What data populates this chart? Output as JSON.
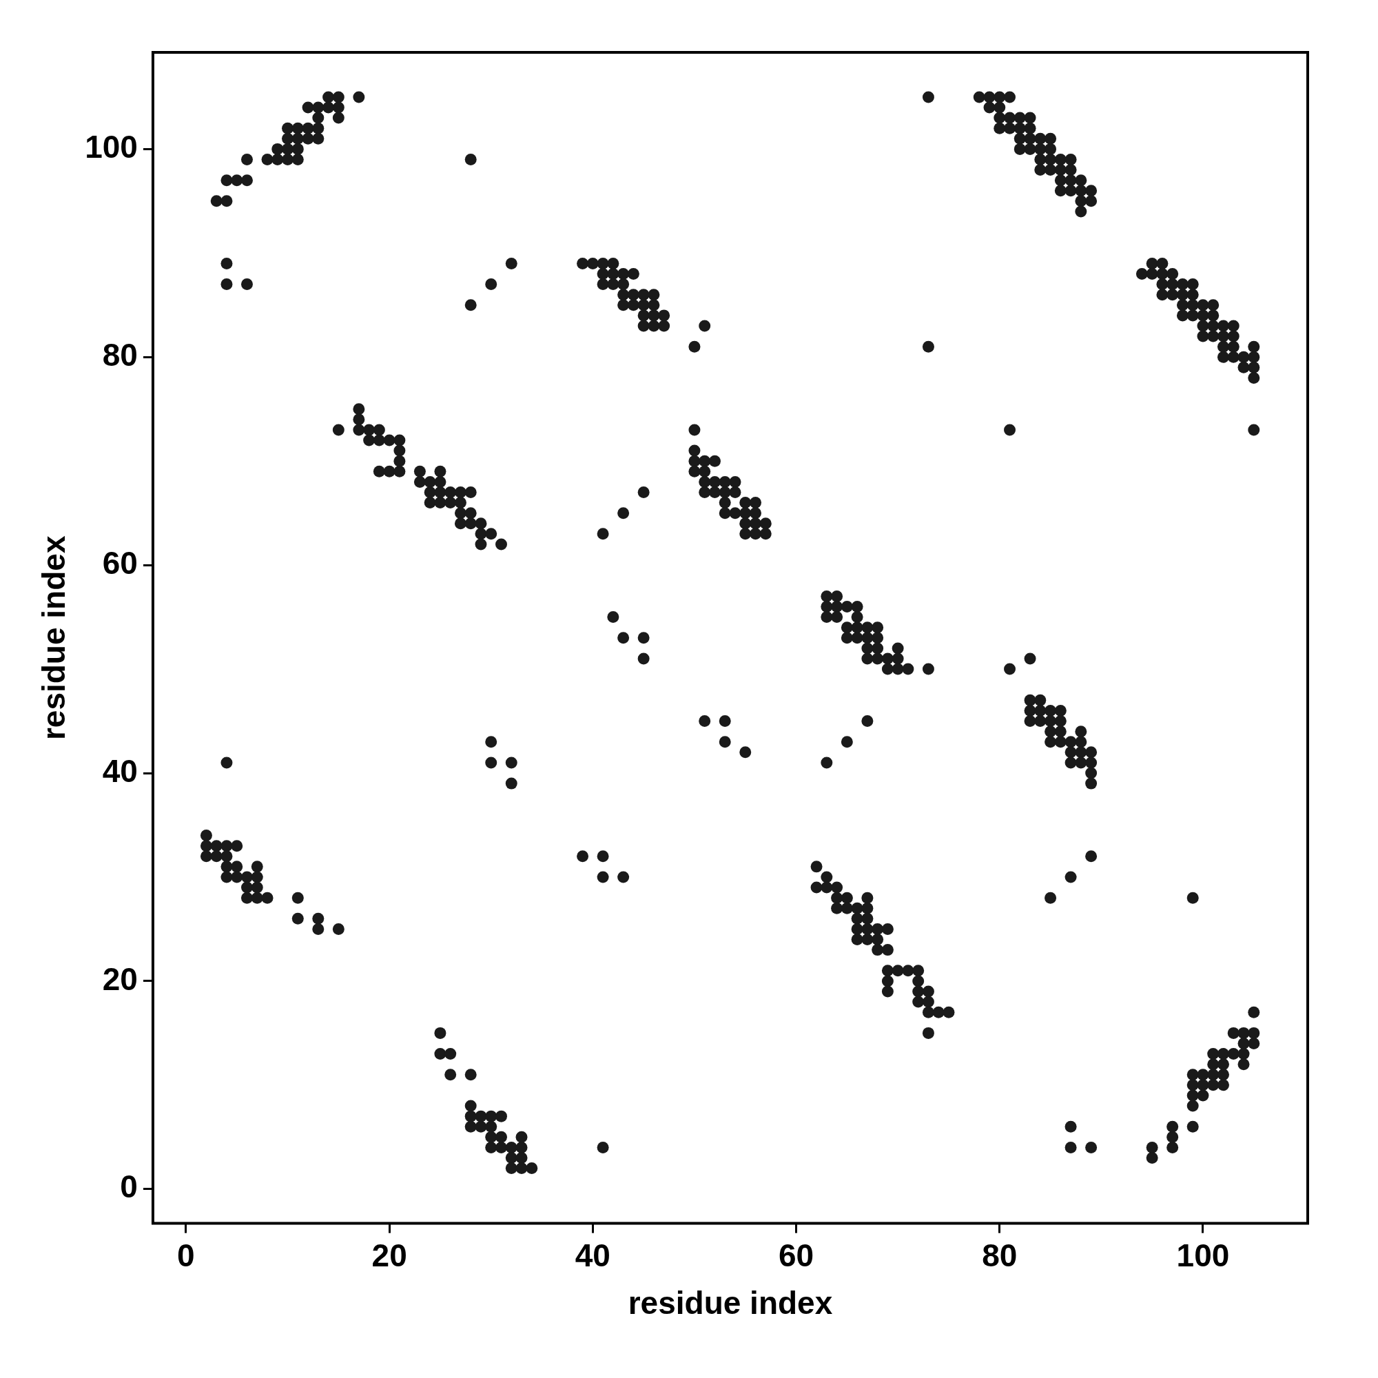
{
  "chart_data": {
    "type": "scatter",
    "xlabel": "residue index",
    "ylabel": "residue index",
    "xlim": [
      -3.25,
      110.3
    ],
    "ylim": [
      -3.3,
      109.3
    ],
    "xticks": [
      0,
      20,
      40,
      60,
      80,
      100
    ],
    "yticks": [
      0,
      20,
      40,
      60,
      80,
      100
    ],
    "marker": "circle",
    "series": [
      {
        "color": "#1a1a1a",
        "x": [
          14,
          15,
          17,
          73,
          78,
          79,
          80,
          81,
          12,
          13,
          14,
          15,
          79,
          80,
          13,
          15,
          80,
          81,
          82,
          83,
          10,
          11,
          12,
          13,
          80,
          81,
          82,
          83,
          10,
          11,
          12,
          13,
          82,
          83,
          84,
          85,
          9,
          10,
          11,
          82,
          83,
          84,
          85,
          6,
          8,
          9,
          10,
          11,
          28,
          84,
          85,
          86,
          87,
          84,
          85,
          86,
          87,
          4,
          5,
          6,
          86,
          87,
          88,
          86,
          87,
          88,
          89,
          3,
          4,
          88,
          89,
          88,
          4,
          32,
          39,
          40,
          41,
          42,
          95,
          96,
          41,
          42,
          43,
          44,
          94,
          95,
          96,
          97,
          4,
          6,
          30,
          41,
          42,
          43,
          96,
          97,
          98,
          99,
          43,
          44,
          45,
          46,
          96,
          97,
          98,
          99,
          28,
          43,
          44,
          45,
          46,
          98,
          99,
          100,
          101,
          45,
          46,
          47,
          98,
          99,
          100,
          101,
          45,
          46,
          47,
          51,
          100,
          101,
          102,
          103,
          100,
          101,
          102,
          103,
          50,
          73,
          102,
          103,
          105,
          102,
          103,
          104,
          105,
          104,
          105,
          105,
          17,
          17,
          15,
          17,
          18,
          19,
          50,
          81,
          105,
          18,
          19,
          20,
          21,
          21,
          50,
          21,
          50,
          51,
          52,
          19,
          20,
          21,
          23,
          25,
          50,
          51,
          23,
          24,
          25,
          51,
          52,
          53,
          54,
          24,
          25,
          26,
          27,
          28,
          45,
          51,
          52,
          53,
          54,
          24,
          25,
          26,
          27,
          53,
          55,
          56,
          27,
          28,
          43,
          53,
          54,
          55,
          56,
          27,
          28,
          29,
          55,
          56,
          57,
          29,
          30,
          41,
          55,
          56,
          57,
          29,
          31,
          63,
          64,
          63,
          64,
          65,
          66,
          42,
          63,
          64,
          66,
          65,
          66,
          67,
          68,
          43,
          45,
          65,
          66,
          67,
          68,
          67,
          68,
          70,
          45,
          67,
          68,
          69,
          70,
          83,
          69,
          70,
          71,
          73,
          81,
          83,
          84,
          83,
          84,
          85,
          86,
          51,
          53,
          67,
          83,
          84,
          85,
          86,
          85,
          86,
          88,
          30,
          53,
          65,
          85,
          86,
          87,
          88,
          55,
          87,
          88,
          89,
          4,
          30,
          32,
          63,
          87,
          88,
          89,
          89,
          32,
          89,
          2,
          2,
          3,
          4,
          5,
          2,
          3,
          4,
          39,
          41,
          89,
          4,
          5,
          7,
          62,
          4,
          5,
          6,
          7,
          41,
          43,
          63,
          87,
          6,
          7,
          62,
          63,
          64,
          6,
          7,
          8,
          11,
          64,
          65,
          67,
          85,
          99,
          64,
          65,
          66,
          67,
          11,
          13,
          66,
          67,
          13,
          15,
          66,
          67,
          68,
          69,
          66,
          67,
          68,
          68,
          69,
          69,
          70,
          71,
          72,
          69,
          72,
          69,
          72,
          73,
          72,
          73,
          73,
          74,
          75,
          105,
          25,
          73,
          103,
          104,
          105,
          104,
          105,
          25,
          26,
          101,
          102,
          103,
          104,
          101,
          102,
          104,
          26,
          28,
          99,
          100,
          101,
          102,
          99,
          100,
          101,
          102,
          99,
          100,
          28,
          99,
          28,
          29,
          30,
          31,
          28,
          29,
          30,
          87,
          97,
          99,
          30,
          31,
          33,
          97,
          30,
          31,
          32,
          33,
          41,
          87,
          89,
          95,
          97,
          32,
          33,
          95,
          32,
          33,
          34
        ],
        "values": [
          105,
          105,
          105,
          105,
          105,
          105,
          105,
          105,
          104,
          104,
          104,
          104,
          104,
          104,
          103,
          103,
          103,
          103,
          103,
          103,
          102,
          102,
          102,
          102,
          102,
          102,
          102,
          102,
          101,
          101,
          101,
          101,
          101,
          101,
          101,
          101,
          100,
          100,
          100,
          100,
          100,
          100,
          100,
          99,
          99,
          99,
          99,
          99,
          99,
          99,
          99,
          99,
          99,
          98,
          98,
          98,
          98,
          97,
          97,
          97,
          97,
          97,
          97,
          96,
          96,
          96,
          96,
          95,
          95,
          95,
          95,
          94,
          89,
          89,
          89,
          89,
          89,
          89,
          89,
          89,
          88,
          88,
          88,
          88,
          88,
          88,
          88,
          88,
          87,
          87,
          87,
          87,
          87,
          87,
          87,
          87,
          87,
          87,
          86,
          86,
          86,
          86,
          86,
          86,
          86,
          86,
          85,
          85,
          85,
          85,
          85,
          85,
          85,
          85,
          85,
          84,
          84,
          84,
          84,
          84,
          84,
          84,
          83,
          83,
          83,
          83,
          83,
          83,
          83,
          83,
          82,
          82,
          82,
          82,
          81,
          81,
          81,
          81,
          81,
          80,
          80,
          80,
          80,
          79,
          79,
          78,
          75,
          74,
          73,
          73,
          73,
          73,
          73,
          73,
          73,
          72,
          72,
          72,
          72,
          71,
          71,
          70,
          70,
          70,
          70,
          69,
          69,
          69,
          69,
          69,
          69,
          69,
          68,
          68,
          68,
          68,
          68,
          68,
          68,
          67,
          67,
          67,
          67,
          67,
          67,
          67,
          67,
          67,
          67,
          66,
          66,
          66,
          66,
          66,
          66,
          66,
          65,
          65,
          65,
          65,
          65,
          65,
          65,
          64,
          64,
          64,
          64,
          64,
          64,
          63,
          63,
          63,
          63,
          63,
          63,
          62,
          62,
          57,
          57,
          56,
          56,
          56,
          56,
          55,
          55,
          55,
          55,
          54,
          54,
          54,
          54,
          53,
          53,
          53,
          53,
          53,
          53,
          52,
          52,
          52,
          51,
          51,
          51,
          51,
          51,
          51,
          50,
          50,
          50,
          50,
          50,
          47,
          47,
          46,
          46,
          46,
          46,
          45,
          45,
          45,
          45,
          45,
          45,
          45,
          44,
          44,
          44,
          43,
          43,
          43,
          43,
          43,
          43,
          43,
          42,
          42,
          42,
          42,
          41,
          41,
          41,
          41,
          41,
          41,
          41,
          40,
          39,
          39,
          34,
          33,
          33,
          33,
          33,
          32,
          32,
          32,
          32,
          32,
          32,
          31,
          31,
          31,
          31,
          30,
          30,
          30,
          30,
          30,
          30,
          30,
          30,
          29,
          29,
          29,
          29,
          29,
          28,
          28,
          28,
          28,
          28,
          28,
          28,
          28,
          28,
          27,
          27,
          27,
          27,
          26,
          26,
          26,
          26,
          25,
          25,
          25,
          25,
          25,
          25,
          24,
          24,
          24,
          23,
          23,
          21,
          21,
          21,
          21,
          20,
          20,
          19,
          19,
          19,
          18,
          18,
          17,
          17,
          17,
          17,
          15,
          15,
          15,
          15,
          15,
          14,
          14,
          13,
          13,
          13,
          13,
          13,
          13,
          12,
          12,
          12,
          11,
          11,
          11,
          11,
          11,
          11,
          10,
          10,
          10,
          10,
          9,
          9,
          8,
          8,
          7,
          7,
          7,
          7,
          6,
          6,
          6,
          6,
          6,
          6,
          5,
          5,
          5,
          5,
          4,
          4,
          4,
          4,
          4,
          4,
          4,
          4,
          4,
          3,
          3,
          3,
          2,
          2,
          2
        ]
      }
    ]
  }
}
